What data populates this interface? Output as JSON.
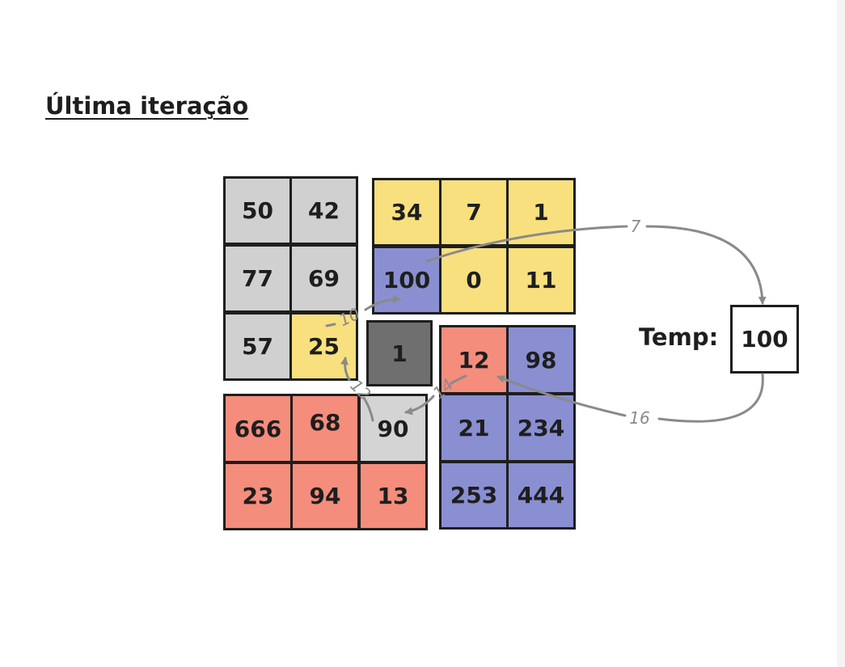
{
  "title": "Última iteração",
  "colors": {
    "gray": "#d0d0d0",
    "yellow": "#f8e07e",
    "blue": "#8a8fd2",
    "red": "#f58d7c",
    "dark": "#6f6f6f",
    "arrow": "#8a8a8a"
  },
  "blocks": {
    "gray": [
      "50",
      "42",
      "77",
      "69",
      "57"
    ],
    "yellow": [
      "34",
      "7",
      "1",
      "0",
      "11",
      "25"
    ],
    "blue": [
      "100",
      "98",
      "21",
      "234",
      "253",
      "444"
    ],
    "red": [
      "12",
      "666",
      "68",
      "23",
      "94",
      "13"
    ],
    "pivot": "1",
    "light": "90"
  },
  "temp": {
    "label": "Temp:",
    "value": "100"
  },
  "arrow_labels": [
    "7",
    "10",
    "12",
    "14",
    "16"
  ]
}
